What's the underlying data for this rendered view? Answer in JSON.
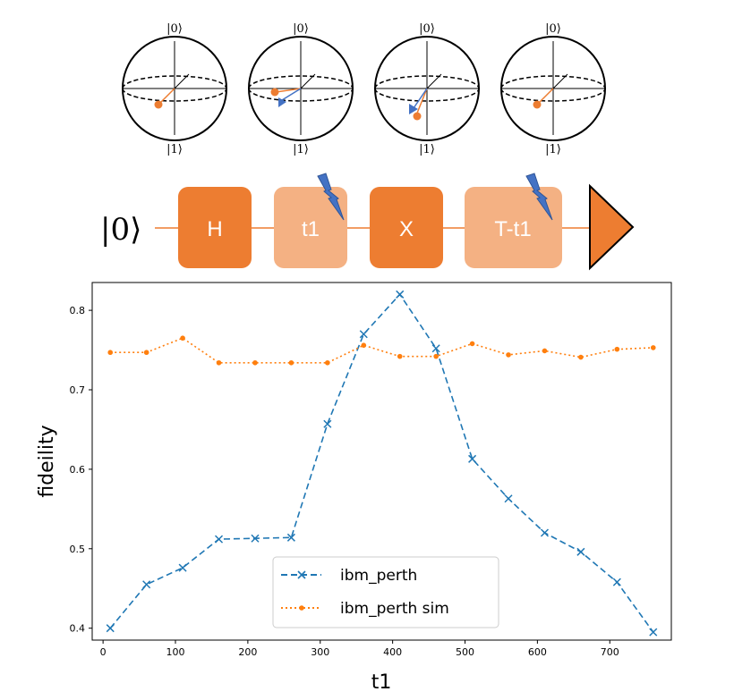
{
  "bloch_spheres": [
    {
      "top_label": "|0⟩",
      "bottom_label": "|1⟩",
      "state": "red-only"
    },
    {
      "top_label": "|0⟩",
      "bottom_label": "|1⟩",
      "state": "red-and-blue"
    },
    {
      "top_label": "|0⟩",
      "bottom_label": "|1⟩",
      "state": "red-and-blue"
    },
    {
      "top_label": "|0⟩",
      "bottom_label": "|1⟩",
      "state": "red-only"
    }
  ],
  "circuit": {
    "input_state": "|0⟩",
    "gates": [
      {
        "label": "H",
        "style": "dark"
      },
      {
        "label": "t1",
        "style": "light",
        "noise": true
      },
      {
        "label": "X",
        "style": "dark"
      },
      {
        "label": "T-t1",
        "style": "light",
        "noise": true
      }
    ],
    "measurement_icon": "play-triangle-icon",
    "colors": {
      "dark_gate": "#ED7D31",
      "light_gate": "#F4B183",
      "noise_bolt": "#4472C4",
      "wire": "#ED7D31"
    }
  },
  "chart_data": {
    "type": "line",
    "xlabel": "t1",
    "ylabel": "fideility",
    "xlim": [
      -15,
      785
    ],
    "ylim": [
      0.385,
      0.835
    ],
    "xticks": [
      0,
      100,
      200,
      300,
      400,
      500,
      600,
      700
    ],
    "yticks": [
      0.4,
      0.5,
      0.6,
      0.7,
      0.8
    ],
    "ytick_labels": [
      "0.4",
      "0.5",
      "0.6",
      "0.7",
      "0.8"
    ],
    "legend_position": "lower-center",
    "grid": false,
    "x": [
      10,
      60,
      110,
      160,
      210,
      260,
      310,
      360,
      410,
      460,
      510,
      560,
      610,
      660,
      710,
      760
    ],
    "series": [
      {
        "name": "ibm_perth",
        "color": "#1f77b4",
        "line": "dashed",
        "marker": "x",
        "values": [
          0.4,
          0.455,
          0.476,
          0.512,
          0.513,
          0.514,
          0.657,
          0.77,
          0.82,
          0.752,
          0.613,
          0.563,
          0.52,
          0.496,
          0.458,
          0.395
        ]
      },
      {
        "name": "ibm_perth sim",
        "color": "#ff7f0e",
        "line": "dotted",
        "marker": "dot",
        "values": [
          0.747,
          0.747,
          0.765,
          0.734,
          0.734,
          0.734,
          0.734,
          0.756,
          0.742,
          0.742,
          0.758,
          0.744,
          0.749,
          0.741,
          0.751,
          0.753
        ]
      }
    ]
  }
}
